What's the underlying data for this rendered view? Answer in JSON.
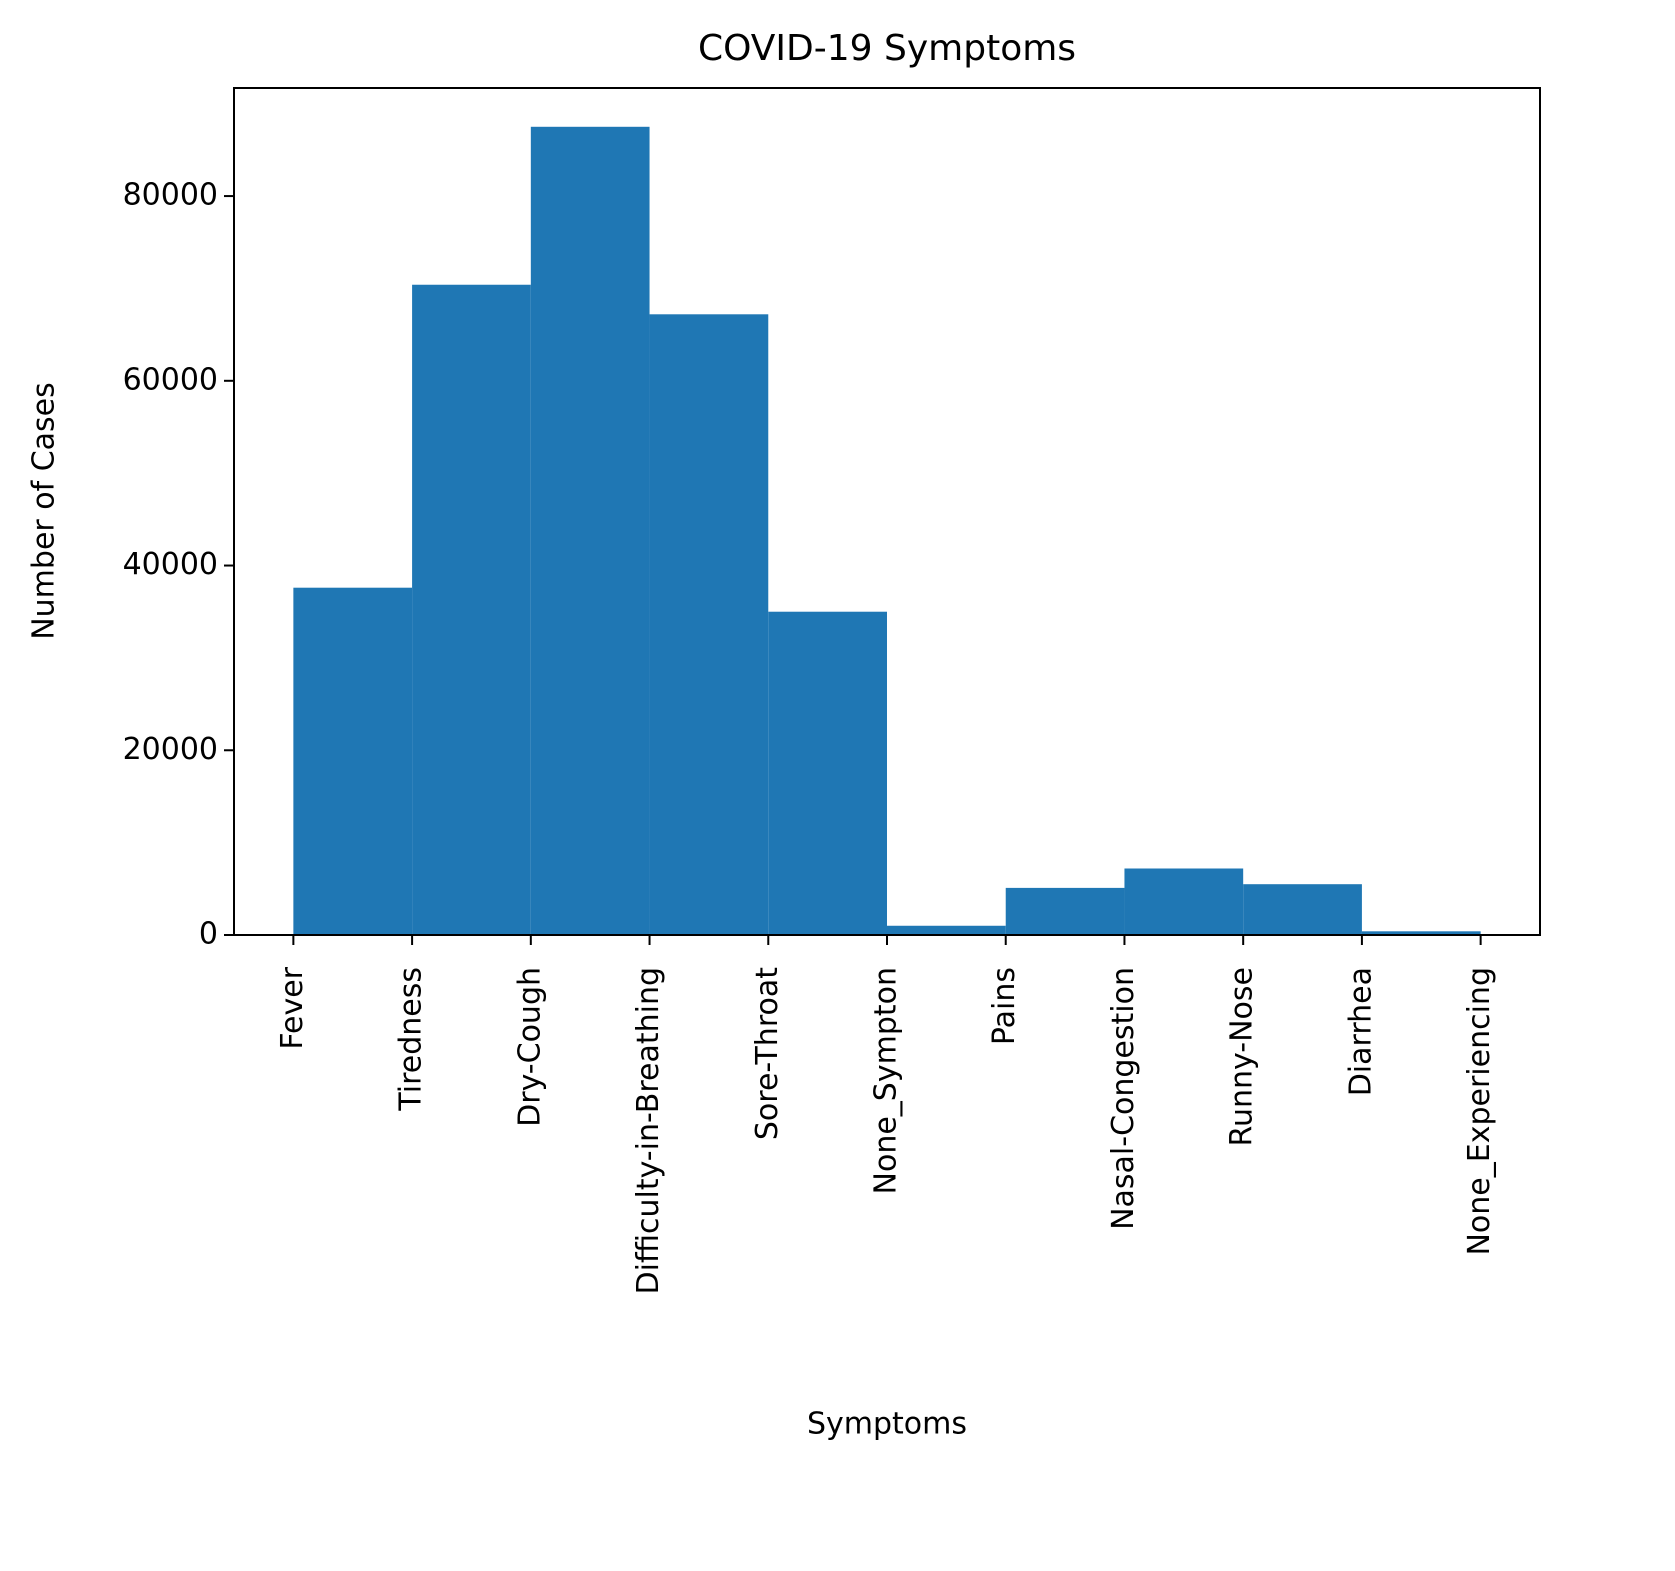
{
  "chart_data": {
    "type": "histogram",
    "title": "COVID-19 Symptoms",
    "xlabel": "Symptoms",
    "ylabel": "Number of Cases",
    "bins": [
      0,
      1,
      2,
      3,
      4,
      5,
      6,
      7,
      8,
      9,
      10
    ],
    "values": [
      37600,
      70400,
      87500,
      67200,
      35000,
      1000,
      5100,
      7200,
      5500,
      400
    ],
    "color": "#1f77b4",
    "xlim": [
      -0.5,
      10.5
    ],
    "xticks": [
      {
        "value": 0,
        "label": "Fever"
      },
      {
        "value": 1,
        "label": "Tiredness"
      },
      {
        "value": 2,
        "label": "Dry-Cough"
      },
      {
        "value": 3,
        "label": "Difficulty-in-Breathing"
      },
      {
        "value": 4,
        "label": "Sore-Throat"
      },
      {
        "value": 5,
        "label": "None_Sympton"
      },
      {
        "value": 6,
        "label": "Pains"
      },
      {
        "value": 7,
        "label": "Nasal-Congestion"
      },
      {
        "value": 8,
        "label": "Runny-Nose"
      },
      {
        "value": 9,
        "label": "Diarrhea"
      },
      {
        "value": 10,
        "label": "None_Experiencing"
      }
    ],
    "ylim": [
      0,
      91700
    ],
    "yticks": [
      0,
      20000,
      40000,
      60000,
      80000
    ],
    "grid": false
  }
}
